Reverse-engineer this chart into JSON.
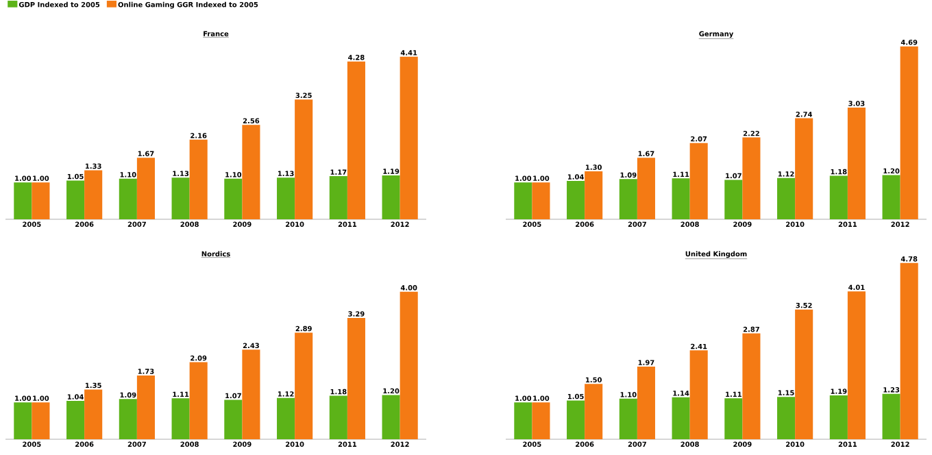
{
  "chart_data": [
    {
      "type": "bar",
      "title": "France",
      "categories": [
        "2005",
        "2006",
        "2007",
        "2008",
        "2009",
        "2010",
        "2011",
        "2012"
      ],
      "legend": "top left",
      "series": [
        {
          "name": "GDP Indexed to 2005",
          "color": "#5cb318",
          "values": [
            1.0,
            1.05,
            1.1,
            1.13,
            1.1,
            1.13,
            1.17,
            1.19
          ],
          "value_labels": [
            "1.00",
            "1.05",
            "1.10",
            "1.13",
            "1.10",
            "1.13",
            "1.17",
            "1.19"
          ]
        },
        {
          "name": "Online Gaming GGR Indexed to 2005",
          "color": "#f47a14",
          "values": [
            1.0,
            1.33,
            1.67,
            2.16,
            2.56,
            3.25,
            4.28,
            4.41
          ],
          "value_labels": [
            "1.00",
            "1.33",
            "1.67",
            "2.16",
            "2.56",
            "3.25",
            "4.28",
            "4.41"
          ]
        }
      ]
    },
    {
      "type": "bar",
      "title": "Germany",
      "categories": [
        "2005",
        "2006",
        "2007",
        "2008",
        "2009",
        "2010",
        "2011",
        "2012"
      ],
      "series": [
        {
          "color": "#5cb318",
          "values": [
            1.0,
            1.04,
            1.09,
            1.11,
            1.07,
            1.12,
            1.18,
            1.2
          ],
          "value_labels": [
            "1.00",
            "1.04",
            "1.09",
            "1.11",
            "1.07",
            "1.12",
            "1.18",
            "1.20"
          ]
        },
        {
          "color": "#f47a14",
          "values": [
            1.0,
            1.3,
            1.67,
            2.07,
            2.22,
            2.74,
            3.03,
            4.69
          ],
          "value_labels": [
            "1.00",
            "1.30",
            "1.67",
            "2.07",
            "2.22",
            "2.74",
            "3.03",
            "4.69"
          ]
        }
      ]
    },
    {
      "type": "bar",
      "title": "Nordics",
      "categories": [
        "2005",
        "2006",
        "2007",
        "2008",
        "2009",
        "2010",
        "2011",
        "2012"
      ],
      "series": [
        {
          "color": "#5cb318",
          "values": [
            1.0,
            1.04,
            1.09,
            1.11,
            1.07,
            1.12,
            1.18,
            1.2
          ],
          "value_labels": [
            "1.00",
            "1.04",
            "1.09",
            "1.11",
            "1.07",
            "1.12",
            "1.18",
            "1.20"
          ]
        },
        {
          "color": "#f47a14",
          "values": [
            1.0,
            1.35,
            1.73,
            2.09,
            2.43,
            2.89,
            3.29,
            4.0
          ],
          "value_labels": [
            "1.00",
            "1.35",
            "1.73",
            "2.09",
            "2.43",
            "2.89",
            "3.29",
            "4.00"
          ]
        }
      ]
    },
    {
      "type": "bar",
      "title": "United Kingdom",
      "categories": [
        "2005",
        "2006",
        "2007",
        "2008",
        "2009",
        "2010",
        "2011",
        "2012"
      ],
      "series": [
        {
          "color": "#5cb318",
          "values": [
            1.0,
            1.05,
            1.1,
            1.14,
            1.11,
            1.15,
            1.19,
            1.23
          ],
          "value_labels": [
            "1.00",
            "1.05",
            "1.10",
            "1.14",
            "1.11",
            "1.15",
            "1.19",
            "1.23"
          ]
        },
        {
          "color": "#f47a14",
          "values": [
            1.0,
            1.5,
            1.97,
            2.41,
            2.87,
            3.52,
            4.01,
            4.78
          ],
          "value_labels": [
            "1.00",
            "1.50",
            "1.97",
            "2.41",
            "2.87",
            "3.52",
            "4.01",
            "4.78"
          ]
        }
      ]
    }
  ]
}
